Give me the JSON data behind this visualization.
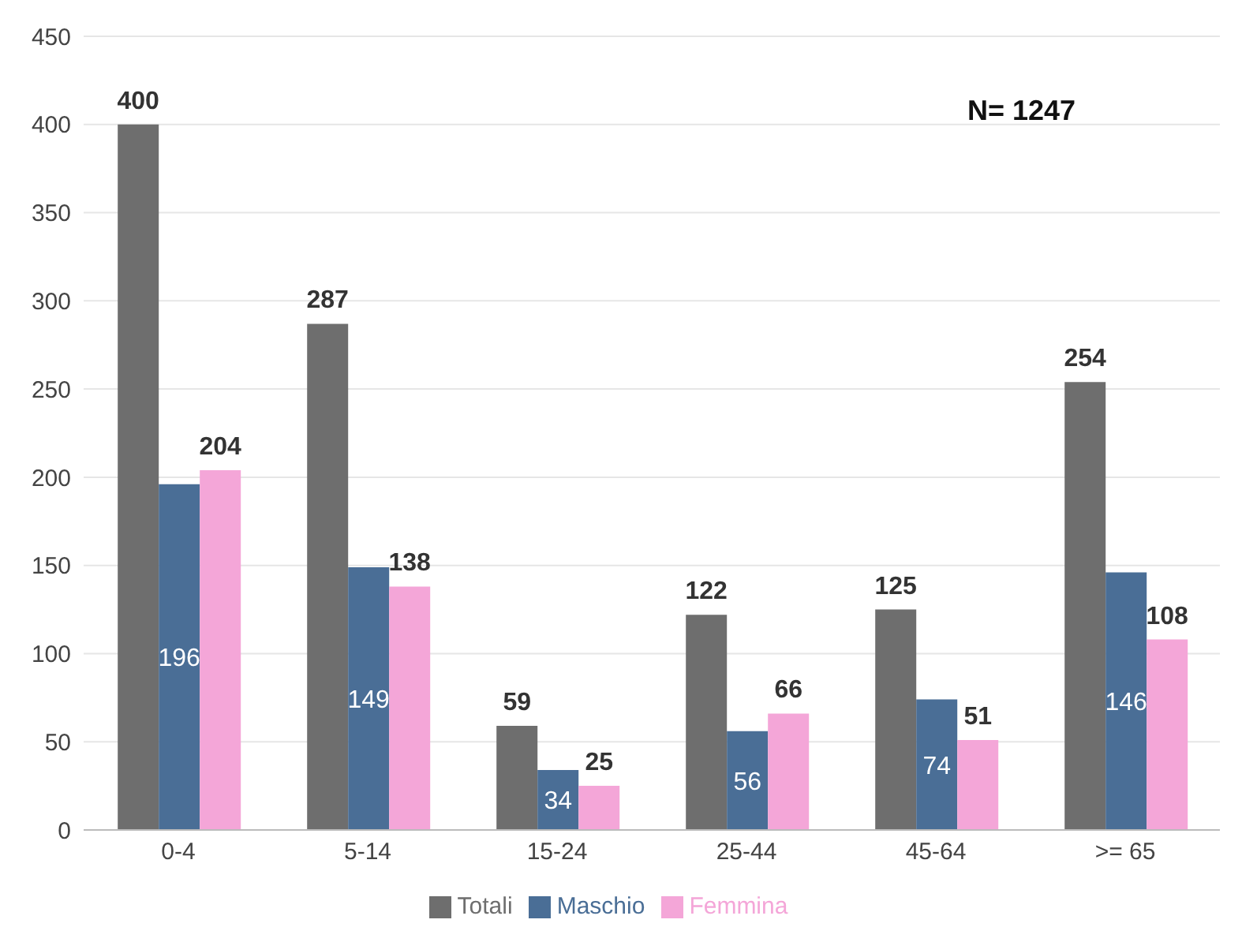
{
  "chart_data": {
    "type": "bar",
    "categories": [
      "0-4",
      "5-14",
      "15-24",
      "25-44",
      "45-64",
      ">= 65"
    ],
    "series": [
      {
        "name": "Totali",
        "color": "#6e6e6e",
        "values": [
          400,
          287,
          59,
          122,
          125,
          254
        ]
      },
      {
        "name": "Maschio",
        "color": "#4a6e96",
        "values": [
          196,
          149,
          34,
          56,
          74,
          146
        ]
      },
      {
        "name": "Femmina",
        "color": "#f4a6d8",
        "values": [
          204,
          138,
          25,
          66,
          51,
          108
        ]
      }
    ],
    "ylim": [
      0,
      450
    ],
    "yticks": [
      0,
      50,
      100,
      150,
      200,
      250,
      300,
      350,
      400,
      450
    ],
    "grid": "y",
    "legend": "bottom",
    "data_labels": true,
    "annotations": [
      "N= 1247"
    ]
  }
}
